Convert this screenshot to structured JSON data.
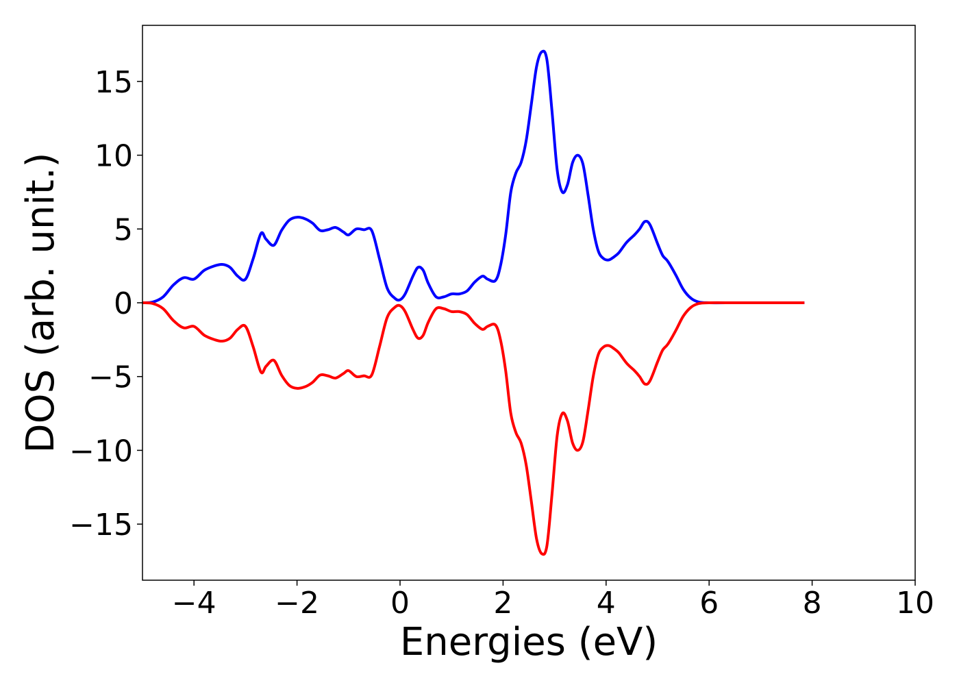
{
  "chart_data": {
    "type": "line",
    "title": "",
    "xlabel": "Energies (eV)",
    "ylabel": "DOS (arb. unit.)",
    "xlim": [
      -5,
      10
    ],
    "ylim": [
      -18.8,
      18.8
    ],
    "xticks": [
      -4,
      -2,
      0,
      2,
      4,
      6,
      8,
      10
    ],
    "xtick_labels": [
      "−4",
      "−2",
      "0",
      "2",
      "4",
      "6",
      "8",
      "10"
    ],
    "yticks": [
      15,
      10,
      5,
      0,
      -5,
      -10,
      -15
    ],
    "ytick_labels": [
      "15",
      "10",
      "5",
      "0",
      "−5",
      "−10",
      "−15"
    ],
    "grid": false,
    "legend": "none",
    "series": [
      {
        "color": "#0000ff",
        "x": [
          -5.0,
          -4.8,
          -4.6,
          -4.4,
          -4.2,
          -4.0,
          -3.8,
          -3.6,
          -3.45,
          -3.3,
          -3.15,
          -3.0,
          -2.85,
          -2.7,
          -2.6,
          -2.45,
          -2.3,
          -2.15,
          -2.0,
          -1.85,
          -1.7,
          -1.55,
          -1.4,
          -1.25,
          -1.1,
          -1.0,
          -0.85,
          -0.7,
          -0.55,
          -0.4,
          -0.25,
          -0.1,
          0.0,
          0.1,
          0.25,
          0.35,
          0.45,
          0.55,
          0.7,
          0.85,
          1.0,
          1.15,
          1.3,
          1.45,
          1.6,
          1.7,
          1.85,
          1.95,
          2.05,
          2.15,
          2.25,
          2.35,
          2.45,
          2.55,
          2.65,
          2.75,
          2.85,
          2.95,
          3.05,
          3.15,
          3.25,
          3.35,
          3.45,
          3.55,
          3.65,
          3.75,
          3.85,
          3.95,
          4.05,
          4.15,
          4.25,
          4.4,
          4.55,
          4.65,
          4.75,
          4.85,
          5.0,
          5.1,
          5.2,
          5.35,
          5.5,
          5.65,
          5.8,
          6.0,
          6.5,
          7.0,
          7.5,
          7.85
        ],
        "values": [
          0.0,
          0.05,
          0.4,
          1.2,
          1.7,
          1.6,
          2.2,
          2.5,
          2.6,
          2.4,
          1.8,
          1.6,
          3.0,
          4.7,
          4.3,
          3.9,
          4.9,
          5.6,
          5.8,
          5.7,
          5.4,
          4.9,
          4.95,
          5.1,
          4.8,
          4.6,
          5.0,
          4.95,
          4.9,
          3.0,
          1.0,
          0.3,
          0.2,
          0.6,
          1.8,
          2.4,
          2.2,
          1.3,
          0.4,
          0.4,
          0.6,
          0.6,
          0.8,
          1.4,
          1.8,
          1.6,
          1.5,
          2.5,
          4.6,
          7.5,
          8.8,
          9.5,
          11.0,
          13.5,
          16.0,
          17.0,
          16.5,
          13.0,
          9.0,
          7.5,
          8.0,
          9.5,
          10.0,
          9.4,
          7.3,
          5.0,
          3.5,
          3.0,
          2.9,
          3.1,
          3.4,
          4.1,
          4.6,
          5.0,
          5.5,
          5.3,
          4.0,
          3.2,
          2.8,
          1.9,
          0.9,
          0.3,
          0.05,
          0.0,
          0.0,
          0.0,
          0.0,
          0.0
        ]
      },
      {
        "color": "#ff0000",
        "x": [
          -5.0,
          -4.8,
          -4.6,
          -4.4,
          -4.2,
          -4.0,
          -3.8,
          -3.6,
          -3.45,
          -3.3,
          -3.15,
          -3.0,
          -2.85,
          -2.7,
          -2.6,
          -2.45,
          -2.3,
          -2.15,
          -2.0,
          -1.85,
          -1.7,
          -1.55,
          -1.4,
          -1.25,
          -1.1,
          -1.0,
          -0.85,
          -0.7,
          -0.55,
          -0.4,
          -0.25,
          -0.1,
          0.0,
          0.1,
          0.25,
          0.35,
          0.45,
          0.55,
          0.7,
          0.85,
          1.0,
          1.15,
          1.3,
          1.45,
          1.6,
          1.7,
          1.85,
          1.95,
          2.05,
          2.15,
          2.25,
          2.35,
          2.45,
          2.55,
          2.65,
          2.75,
          2.85,
          2.95,
          3.05,
          3.15,
          3.25,
          3.35,
          3.45,
          3.55,
          3.65,
          3.75,
          3.85,
          3.95,
          4.05,
          4.15,
          4.25,
          4.4,
          4.55,
          4.65,
          4.75,
          4.85,
          5.0,
          5.1,
          5.2,
          5.35,
          5.5,
          5.65,
          5.8,
          6.0,
          6.5,
          7.0,
          7.5,
          7.85
        ],
        "values": [
          0.0,
          -0.05,
          -0.4,
          -1.2,
          -1.7,
          -1.6,
          -2.2,
          -2.5,
          -2.6,
          -2.4,
          -1.8,
          -1.6,
          -3.0,
          -4.7,
          -4.3,
          -3.9,
          -4.9,
          -5.6,
          -5.8,
          -5.7,
          -5.4,
          -4.9,
          -4.95,
          -5.1,
          -4.8,
          -4.6,
          -5.0,
          -4.95,
          -4.9,
          -3.0,
          -1.0,
          -0.3,
          -0.2,
          -0.6,
          -1.8,
          -2.4,
          -2.2,
          -1.3,
          -0.4,
          -0.4,
          -0.6,
          -0.6,
          -0.8,
          -1.4,
          -1.8,
          -1.6,
          -1.5,
          -2.5,
          -4.6,
          -7.5,
          -8.8,
          -9.5,
          -11.0,
          -13.5,
          -16.0,
          -17.0,
          -16.5,
          -13.0,
          -9.0,
          -7.5,
          -8.0,
          -9.5,
          -10.0,
          -9.4,
          -7.3,
          -5.0,
          -3.5,
          -3.0,
          -2.9,
          -3.1,
          -3.4,
          -4.1,
          -4.6,
          -5.0,
          -5.5,
          -5.3,
          -4.0,
          -3.2,
          -2.8,
          -1.9,
          -0.9,
          -0.3,
          -0.05,
          0.0,
          0.0,
          0.0,
          0.0,
          0.0
        ]
      }
    ]
  }
}
